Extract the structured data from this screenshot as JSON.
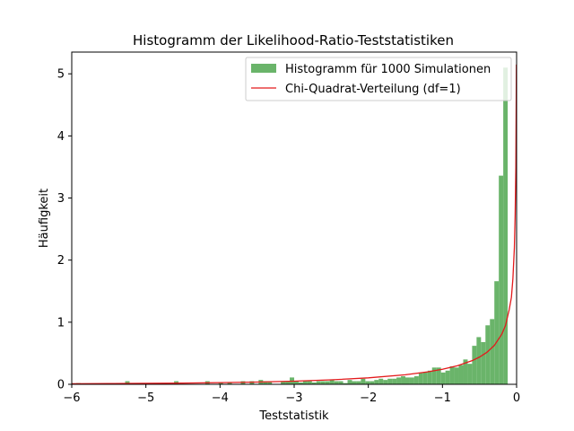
{
  "chart_data": {
    "type": "bar",
    "title": "Histogramm der Likelihood-Ratio-Teststatistiken",
    "xlabel": "Teststatistik",
    "ylabel": "Häufigkeit",
    "xlim": [
      -6,
      0
    ],
    "ylim": [
      0,
      5.35
    ],
    "xticks": [
      -6,
      -5,
      -4,
      -3,
      -2,
      -1,
      0
    ],
    "xtick_labels": [
      "−6",
      "−5",
      "−4",
      "−3",
      "−2",
      "−1",
      "0"
    ],
    "yticks": [
      0,
      1,
      2,
      3,
      4,
      5
    ],
    "ytick_labels": [
      "0",
      "1",
      "2",
      "3",
      "4",
      "5"
    ],
    "grid": false,
    "legend_position": "top-right",
    "colors": {
      "histogram": "#6ab46a",
      "curve": "#e31a1c"
    },
    "series": [
      {
        "name": "Histogramm für 1000 Simulationen",
        "kind": "histogram",
        "bin_width": 0.06,
        "x": [
          -5.94,
          -5.4,
          -5.28,
          -4.62,
          -4.2,
          -4.02,
          -3.9,
          -3.72,
          -3.6,
          -3.48,
          -3.42,
          -3.36,
          -3.18,
          -3.12,
          -3.06,
          -3.0,
          -2.94,
          -2.88,
          -2.82,
          -2.76,
          -2.7,
          -2.64,
          -2.58,
          -2.52,
          -2.46,
          -2.4,
          -2.34,
          -2.28,
          -2.22,
          -2.16,
          -2.1,
          -2.04,
          -1.98,
          -1.92,
          -1.86,
          -1.8,
          -1.74,
          -1.68,
          -1.62,
          -1.56,
          -1.5,
          -1.44,
          -1.38,
          -1.32,
          -1.26,
          -1.2,
          -1.14,
          -1.08,
          -1.02,
          -0.96,
          -0.9,
          -0.84,
          -0.78,
          -0.72,
          -0.66,
          -0.6,
          -0.54,
          -0.48,
          -0.42,
          -0.36,
          -0.3,
          -0.24,
          -0.18,
          -0.12,
          -0.06
        ],
        "values": [
          0.02,
          0.02,
          0.05,
          0.05,
          0.05,
          0.03,
          0.03,
          0.05,
          0.05,
          0.07,
          0.05,
          0.05,
          0.05,
          0.05,
          0.11,
          0.05,
          0.03,
          0.05,
          0.05,
          0.03,
          0.05,
          0.05,
          0.05,
          0.07,
          0.05,
          0.05,
          0.02,
          0.07,
          0.05,
          0.05,
          0.09,
          0.05,
          0.05,
          0.07,
          0.09,
          0.07,
          0.09,
          0.09,
          0.11,
          0.13,
          0.11,
          0.11,
          0.13,
          0.18,
          0.2,
          0.22,
          0.27,
          0.27,
          0.19,
          0.22,
          0.29,
          0.27,
          0.31,
          0.4,
          0.33,
          0.62,
          0.76,
          0.68,
          0.95,
          1.05,
          1.66,
          3.36,
          5.1,
          0,
          0
        ]
      },
      {
        "name": "Chi-Quadrat-Verteilung (df=1)",
        "kind": "line",
        "x": [
          -6.0,
          -5.5,
          -5.0,
          -4.5,
          -4.0,
          -3.5,
          -3.0,
          -2.5,
          -2.0,
          -1.5,
          -1.2,
          -1.0,
          -0.8,
          -0.6,
          -0.5,
          -0.4,
          -0.3,
          -0.2,
          -0.15,
          -0.1,
          -0.07,
          -0.05,
          -0.03,
          -0.02,
          -0.01,
          -0.005,
          -0.003
        ],
        "values": [
          0.008,
          0.012,
          0.015,
          0.019,
          0.027,
          0.036,
          0.051,
          0.072,
          0.104,
          0.154,
          0.201,
          0.242,
          0.299,
          0.381,
          0.439,
          0.516,
          0.627,
          0.807,
          0.947,
          1.2,
          1.4,
          1.7,
          2.2,
          2.7,
          3.5,
          4.6,
          5.15
        ]
      }
    ]
  }
}
